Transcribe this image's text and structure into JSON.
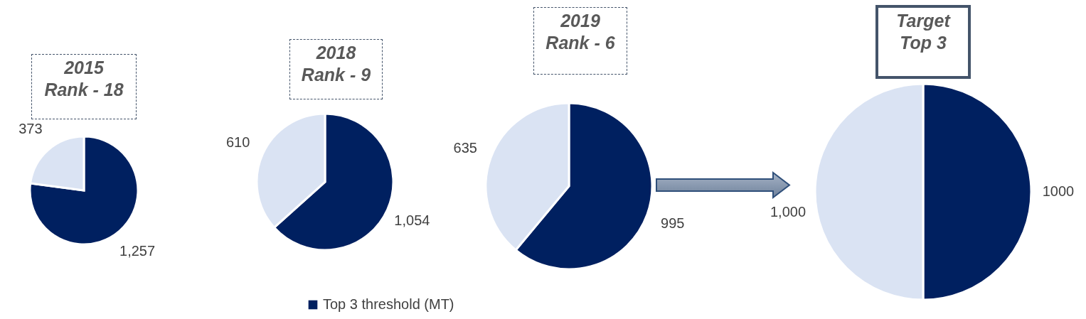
{
  "chart_data": [
    {
      "type": "pie",
      "title": "2015\nRank - 18",
      "categories": [
        null,
        null
      ],
      "values": [
        1257,
        373
      ],
      "colors": [
        "#002060",
        "#dae3f3"
      ],
      "value_labels": [
        "1,257",
        "373"
      ]
    },
    {
      "type": "pie",
      "title": "2018\nRank - 9",
      "categories": [
        null,
        null
      ],
      "values": [
        1054,
        610
      ],
      "colors": [
        "#002060",
        "#dae3f3"
      ],
      "value_labels": [
        "1,054",
        "610"
      ]
    },
    {
      "type": "pie",
      "title": "2019\nRank - 6",
      "categories": [
        "Top 3 threshold (MT)",
        null
      ],
      "values": [
        995,
        635
      ],
      "colors": [
        "#002060",
        "#dae3f3"
      ],
      "value_labels": [
        "995",
        "635"
      ],
      "legend": "bottom"
    },
    {
      "type": "pie",
      "title": "Target\nTop 3",
      "categories": [
        null,
        null
      ],
      "values": [
        1000,
        1000
      ],
      "colors": [
        "#002060",
        "#dae3f3"
      ],
      "value_labels": [
        "1000",
        "1,000"
      ]
    }
  ]
}
